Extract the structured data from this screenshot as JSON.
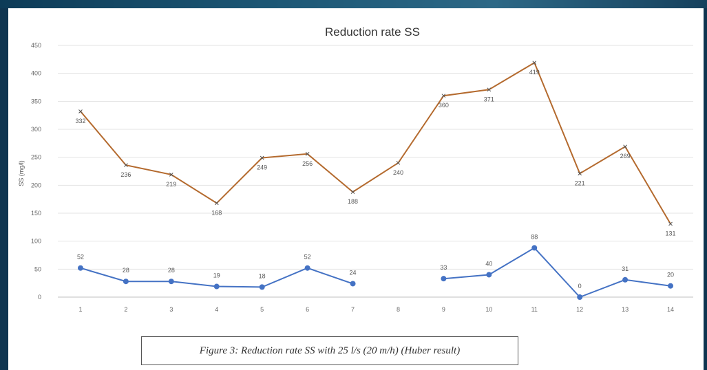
{
  "caption": "Figure 3: Reduction rate SS with 25 l/s (20 m/h) (Huber result)",
  "chart_data": {
    "type": "line",
    "title": "Reduction rate SS",
    "xlabel": "",
    "ylabel": "SS (mg/l)",
    "categories": [
      "1",
      "2",
      "3",
      "4",
      "5",
      "6",
      "7",
      "8",
      "9",
      "10",
      "11",
      "12",
      "13",
      "14"
    ],
    "ylim": [
      0,
      450
    ],
    "yticks": [
      0,
      50,
      100,
      150,
      200,
      250,
      300,
      350,
      400,
      450
    ],
    "grid": true,
    "legend": "none",
    "series": [
      {
        "color": "#b46a2e",
        "marker": "x",
        "values": [
          332,
          236,
          219,
          168,
          249,
          256,
          188,
          240,
          360,
          371,
          419,
          221,
          269,
          131
        ],
        "labels": [
          "332",
          "236",
          "219",
          "168",
          "249",
          "256",
          "188",
          "240",
          "360",
          "371",
          "419",
          "221",
          "269",
          "131"
        ]
      },
      {
        "color": "#4472c4",
        "marker": "circle",
        "values": [
          52,
          28,
          28,
          19,
          18,
          52,
          24,
          null,
          33,
          40,
          88,
          0,
          31,
          20
        ],
        "labels": [
          "52",
          "28",
          "28",
          "19",
          "18",
          "52",
          "24",
          "",
          "33",
          "40",
          "88",
          "0",
          "31",
          "20"
        ]
      }
    ]
  }
}
